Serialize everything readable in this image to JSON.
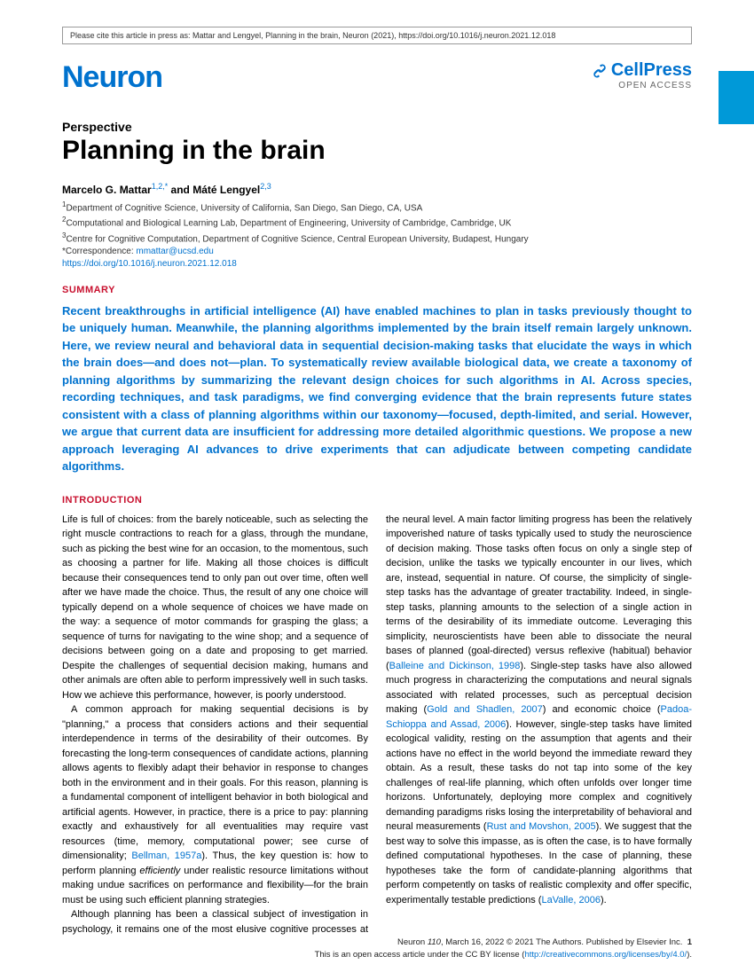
{
  "citation_notice": "Please cite this article in press as: Mattar and Lengyel, Planning in the brain, Neuron (2021), https://doi.org/10.1016/j.neuron.2021.12.018",
  "journal": "Neuron",
  "publisher": {
    "name": "CellPress",
    "access": "OPEN ACCESS"
  },
  "article": {
    "type": "Perspective",
    "title": "Planning in the brain",
    "authors_html": "Marcelo G. Mattar<sup>1,2,*</sup> and Máté Lengyel<sup>2,3</sup>",
    "affiliations": [
      "1Department of Cognitive Science, University of California, San Diego, San Diego, CA, USA",
      "2Computational and Biological Learning Lab, Department of Engineering, University of Cambridge, Cambridge, UK",
      "3Centre for Cognitive Computation, Department of Cognitive Science, Central European University, Budapest, Hungary"
    ],
    "correspondence_label": "*Correspondence: ",
    "correspondence_email": "mmattar@ucsd.edu",
    "doi": "https://doi.org/10.1016/j.neuron.2021.12.018"
  },
  "sections": {
    "summary_heading": "SUMMARY",
    "summary": "Recent breakthroughs in artificial intelligence (AI) have enabled machines to plan in tasks previously thought to be uniquely human. Meanwhile, the planning algorithms implemented by the brain itself remain largely unknown. Here, we review neural and behavioral data in sequential decision-making tasks that elucidate the ways in which the brain does—and does not—plan. To systematically review available biological data, we create a taxonomy of planning algorithms by summarizing the relevant design choices for such algorithms in AI. Across species, recording techniques, and task paradigms, we find converging evidence that the brain represents future states consistent with a class of planning algorithms within our taxonomy—focused, depth-limited, and serial. However, we argue that current data are insufficient for addressing more detailed algorithmic questions. We propose a new approach leveraging AI advances to drive experiments that can adjudicate between competing candidate algorithms.",
    "intro_heading": "INTRODUCTION",
    "intro_p1": "Life is full of choices: from the barely noticeable, such as selecting the right muscle contractions to reach for a glass, through the mundane, such as picking the best wine for an occasion, to the momentous, such as choosing a partner for life. Making all those choices is difficult because their consequences tend to only pan out over time, often well after we have made the choice. Thus, the result of any one choice will typically depend on a whole sequence of choices we have made on the way: a sequence of motor commands for grasping the glass; a sequence of turns for navigating to the wine shop; and a sequence of decisions between going on a date and proposing to get married. Despite the challenges of sequential decision making, humans and other animals are often able to perform impressively well in such tasks. How we achieve this performance, however, is poorly understood.",
    "intro_p2_a": "A common approach for making sequential decisions is by \"planning,\" a process that considers actions and their sequential interdependence in terms of the desirability of their outcomes. By forecasting the long-term consequences of candidate actions, planning allows agents to flexibly adapt their behavior in response to changes both in the environment and in their goals. For this reason, planning is a fundamental component of intelligent behavior in both biological and artificial agents. However, in practice, there is a price to pay: planning exactly and exhaustively for all eventualities may require vast resources (time, memory, computational power; see curse of dimensionality; ",
    "intro_p2_ref": "Bellman, 1957a",
    "intro_p2_b": "). Thus, the key question is: how to perform planning ",
    "intro_p2_c": "efficiently",
    "intro_p2_d": " under realistic resource limitations without making undue sacrifices on performance and flexibility—for the brain must be using such efficient planning strategies.",
    "intro_p3_a": "Although planning has been a classical subject of investigation in psychology, it remains one of the most elusive cognitive processes at the neural level. A main factor limiting progress has been the relatively impoverished nature of tasks typically used to study the neuroscience of decision making. Those tasks often focus on only a single step of decision, unlike the tasks we typically encounter in our lives, which are, instead, sequential in nature. Of course, the simplicity of single-step tasks has the advantage of greater tractability. Indeed, in single-step tasks, planning amounts to the selection of a single action in terms of the desirability of its immediate outcome. Leveraging this simplicity, neuroscientists have been able to dissociate the neural bases of planned (goal-directed) versus reflexive (habitual) behavior (",
    "intro_p3_ref1": "Balleine and Dickinson, 1998",
    "intro_p3_b": "). Single-step tasks have also allowed much progress in characterizing the computations and neural signals associated with related processes, such as perceptual decision making (",
    "intro_p3_ref2": "Gold and Shadlen, 2007",
    "intro_p3_c": ") and economic choice (",
    "intro_p3_ref3": "Padoa-Schioppa and Assad, 2006",
    "intro_p3_d": "). However, single-step tasks have limited ecological validity, resting on the assumption that agents and their actions have no effect in the world beyond the immediate reward they obtain. As a result, these tasks do not tap into some of the key challenges of real-life planning, which often unfolds over longer time horizons. Unfortunately, deploying more complex and cognitively demanding paradigms risks losing the interpretability of behavioral and neural measurements (",
    "intro_p3_ref4": "Rust and Movshon, 2005",
    "intro_p3_e": "). We suggest that the best way to solve this impasse, as is often the case, is to have formally defined computational hypotheses. In the case of planning, these hypotheses take the form of candidate-planning algorithms that perform competently on tasks of realistic complexity and offer specific, experimentally testable predictions (",
    "intro_p3_ref5": "LaValle, 2006",
    "intro_p3_f": ")."
  },
  "footer": {
    "line1_a": "Neuron ",
    "line1_b": "110",
    "line1_c": ", March 16, 2022 © 2021 The Authors. Published by Elsevier Inc.",
    "page": "1",
    "line2_a": "This is an open access article under the CC BY license (",
    "line2_link": "http://creativecommons.org/licenses/by/4.0/",
    "line2_b": ")."
  },
  "colors": {
    "brand_blue": "#0072ce",
    "tab_blue": "#0099d8",
    "heading_red": "#c8102e"
  }
}
